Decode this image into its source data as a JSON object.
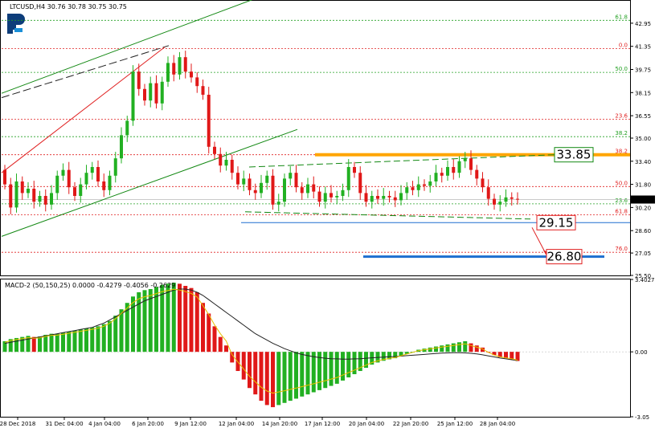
{
  "header": {
    "symbol_line": "LTCUSD,H4  30.76 30.78 30.75 30.75",
    "macd_line": "MACD-2 (50,150,25) 0.0000 -0.4279 -0.4056 -0.2629"
  },
  "colors": {
    "bull": "#22b022",
    "bear": "#e01818",
    "fib_red": "#e02020",
    "fib_green": "#22a022",
    "resistance": "#ffa500",
    "target": "#1e6fd0",
    "channel": "#128812",
    "trend_red": "#e02020"
  },
  "icons": {
    "logo": "roboforex-r-logo"
  },
  "chart_data": [
    {
      "type": "candlestick",
      "title": "LTCUSD,H4",
      "ylim": [
        25.5,
        44.5
      ],
      "y_ticks": [
        "42.95",
        "41.35",
        "39.75",
        "38.15",
        "36.55",
        "35.00",
        "33.40",
        "31.80",
        "30.20",
        "28.60",
        "27.05",
        "25.50"
      ],
      "x_labels": [
        "28 Dec 2018",
        "31 Dec 04:00",
        "4 Jan 04:00",
        "6 Jan 20:00",
        "9 Jan 12:00",
        "12 Jan 04:00",
        "14 Jan 20:00",
        "17 Jan 12:00",
        "20 Jan 04:00",
        "22 Jan 20:00",
        "25 Jan 12:00",
        "28 Jan 04:00"
      ],
      "last_price": "30.75",
      "fibonacci_levels": [
        {
          "label": "61.8",
          "value": 43.15,
          "color": "green"
        },
        {
          "label": "0.0",
          "value": 41.2,
          "color": "red"
        },
        {
          "label": "50.0",
          "value": 39.55,
          "color": "green"
        },
        {
          "label": "23.6",
          "value": 36.3,
          "color": "red"
        },
        {
          "label": "38.2",
          "value": 35.1,
          "color": "green"
        },
        {
          "label": "38.2",
          "value": 33.85,
          "color": "red"
        },
        {
          "label": "50.0",
          "value": 31.65,
          "color": "red"
        },
        {
          "label": "23.6",
          "value": 30.45,
          "color": "green"
        },
        {
          "label": "61.8",
          "value": 29.7,
          "color": "red"
        },
        {
          "label": "76.0",
          "value": 27.1,
          "color": "red"
        }
      ],
      "annotations": [
        {
          "label": "33.85",
          "value": 33.85,
          "kind": "resistance"
        },
        {
          "label": "29.15",
          "value": 29.15,
          "kind": "support"
        },
        {
          "label": "26.80",
          "value": 26.8,
          "kind": "target"
        }
      ],
      "ohlc_series": [
        31.8,
        30.2,
        32.0,
        31.2,
        31.5,
        30.6,
        31.0,
        30.4,
        31.2,
        32.4,
        32.8,
        31.6,
        31.0,
        31.8,
        32.6,
        33.0,
        32.0,
        31.4,
        32.4,
        33.6,
        35.2,
        36.2,
        39.6,
        38.4,
        37.6,
        38.8,
        37.4,
        38.9,
        40.2,
        39.4,
        40.6,
        39.6,
        39.2,
        38.6,
        38.0,
        34.4,
        33.9,
        33.1,
        33.5,
        32.6,
        31.8,
        32.2,
        31.4,
        31.2,
        31.9,
        32.4,
        30.4,
        30.6,
        32.2,
        32.6,
        31.6,
        31.2,
        31.8,
        31.3,
        30.6,
        31.2,
        30.9,
        31.0,
        31.4,
        33.0,
        32.6,
        31.2,
        30.6,
        31.0,
        30.8,
        31.0,
        30.9,
        30.7,
        31.2,
        31.6,
        31.4,
        31.8,
        31.7,
        32.0,
        32.6,
        32.4,
        33.0,
        32.6,
        33.4,
        33.6,
        32.8,
        32.2,
        31.6,
        30.8,
        30.4,
        30.6,
        30.9,
        30.8,
        30.75
      ]
    },
    {
      "type": "bar",
      "title": "MACD-2 (50,150,25)",
      "ylim": [
        -3.05,
        3.4027
      ],
      "y_ticks": [
        "3.4027",
        "0.00",
        "-3.05"
      ],
      "macd_histogram": [
        0.5,
        0.6,
        0.65,
        0.7,
        0.75,
        0.7,
        0.72,
        0.8,
        0.85,
        0.85,
        0.9,
        0.95,
        1.0,
        1.05,
        1.1,
        1.15,
        1.2,
        1.3,
        1.45,
        1.7,
        2.0,
        2.3,
        2.6,
        2.8,
        2.9,
        2.95,
        3.05,
        3.15,
        3.2,
        3.25,
        3.2,
        3.1,
        3.0,
        2.8,
        2.3,
        1.8,
        1.2,
        0.7,
        0.3,
        -0.5,
        -0.9,
        -1.3,
        -1.7,
        -2.0,
        -2.3,
        -2.5,
        -2.6,
        -2.5,
        -2.4,
        -2.3,
        -2.2,
        -2.1,
        -2.0,
        -1.9,
        -1.8,
        -1.7,
        -1.6,
        -1.5,
        -1.35,
        -1.2,
        -1.05,
        -0.9,
        -0.75,
        -0.6,
        -0.5,
        -0.42,
        -0.35,
        -0.3,
        -0.2,
        -0.1,
        0.0,
        0.1,
        0.15,
        0.2,
        0.25,
        0.3,
        0.35,
        0.4,
        0.45,
        0.5,
        0.4,
        0.3,
        0.2,
        0.0,
        -0.15,
        -0.25,
        -0.3,
        -0.35,
        -0.43
      ],
      "signal_series": [
        0.4,
        0.45,
        0.5,
        0.55,
        0.6,
        0.65,
        0.7,
        0.75,
        0.8,
        0.85,
        0.9,
        0.95,
        1.0,
        1.05,
        1.1,
        1.15,
        1.25,
        1.35,
        1.5,
        1.65,
        1.8,
        1.95,
        2.1,
        2.25,
        2.4,
        2.5,
        2.6,
        2.7,
        2.8,
        2.9,
        2.95,
        2.95,
        2.9,
        2.8,
        2.65,
        2.45,
        2.25,
        2.05,
        1.85,
        1.65,
        1.45,
        1.25,
        1.05,
        0.85,
        0.7,
        0.55,
        0.4,
        0.28,
        0.15,
        0.05,
        -0.05,
        -0.12,
        -0.18,
        -0.23,
        -0.27,
        -0.3,
        -0.32,
        -0.33,
        -0.34,
        -0.34,
        -0.33,
        -0.32,
        -0.3,
        -0.28,
        -0.26,
        -0.25,
        -0.23,
        -0.22,
        -0.2,
        -0.18,
        -0.16,
        -0.14,
        -0.12,
        -0.1,
        -0.08,
        -0.06,
        -0.05,
        -0.04,
        -0.04,
        -0.05,
        -0.07,
        -0.1,
        -0.14,
        -0.19,
        -0.24,
        -0.29,
        -0.33,
        -0.37,
        -0.41
      ]
    }
  ]
}
